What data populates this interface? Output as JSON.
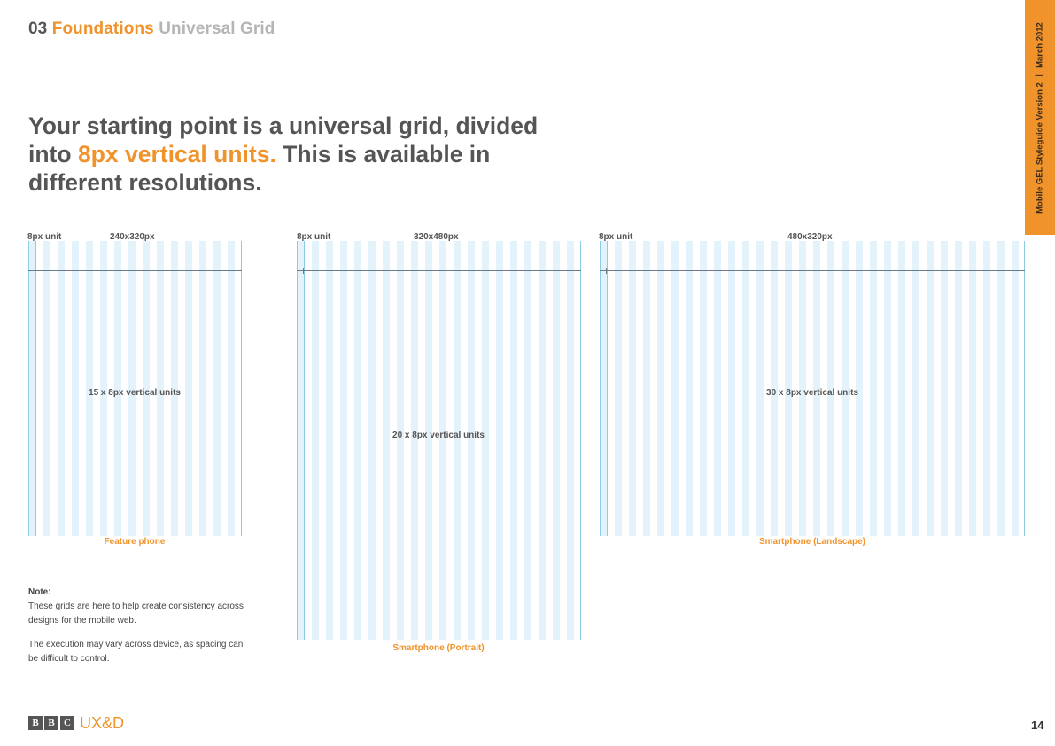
{
  "header": {
    "section_number": "03",
    "section_name": "Foundations",
    "section_subtitle": "Universal Grid"
  },
  "headline": {
    "part1": "Your starting point is a universal grid, divided into ",
    "highlight": "8px vertical units.",
    "part2": " This is available in different resolutions."
  },
  "side_tab": {
    "guide_name": "Mobile GEL Styleguide",
    "version": "Version 2",
    "date": "March 2012"
  },
  "grids": [
    {
      "unit_label": "8px unit",
      "size_label": "240x320px",
      "units_label": "15 x 8px vertical units",
      "caption": "Feature phone"
    },
    {
      "unit_label": "8px unit",
      "size_label": "320x480px",
      "units_label": "20 x 8px vertical units",
      "caption": "Smartphone (Portrait)"
    },
    {
      "unit_label": "8px unit",
      "size_label": "480x320px",
      "units_label": "30 x 8px vertical units",
      "caption": "Smartphone (Landscape)"
    }
  ],
  "note": {
    "title": "Note:",
    "para1": "These grids are here to help create consistency across designs for the mobile web.",
    "para2": "The execution may vary across device, as spacing can be difficult to control."
  },
  "footer": {
    "bbc_letters": [
      "B",
      "B",
      "C"
    ],
    "brand": "UX&D",
    "page_number": "14"
  },
  "colors": {
    "accent": "#f0932b",
    "grid_stripe": "#e4f3fb",
    "grid_line": "#8ecbe6"
  }
}
